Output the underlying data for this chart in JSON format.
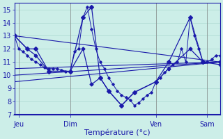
{
  "title": "Température (°c)",
  "background_color": "#cceee8",
  "grid_color": "#aad8d0",
  "line_color": "#1a1aaa",
  "ylim": [
    7,
    15.5
  ],
  "yticks": [
    7,
    8,
    9,
    10,
    11,
    12,
    13,
    14,
    15
  ],
  "xlim": [
    0,
    48
  ],
  "day_ticks": [
    1,
    13,
    33,
    45
  ],
  "day_labels": [
    "Jeu",
    "Dim",
    "Ven",
    "Sam"
  ],
  "day_vlines": [
    1,
    13,
    33,
    45
  ],
  "minor_tick_positions": [
    1,
    2,
    3,
    4,
    5,
    6,
    7,
    8,
    9,
    10,
    11,
    12,
    13,
    14,
    15,
    16,
    17,
    18,
    19,
    20,
    21,
    22,
    23,
    24,
    25,
    26,
    27,
    28,
    29,
    30,
    31,
    32,
    33,
    34,
    35,
    36,
    37,
    38,
    39,
    40,
    41,
    42,
    43,
    44,
    45,
    46,
    47
  ],
  "series_dense_x": [
    0,
    1,
    2,
    3,
    4,
    5,
    6,
    7,
    8,
    9,
    10,
    11,
    12,
    13,
    14,
    15,
    16,
    17,
    18,
    19,
    20,
    21,
    22,
    23,
    24,
    25,
    26,
    27,
    28,
    29,
    30,
    31,
    32,
    33,
    34,
    35,
    36,
    37,
    38,
    39,
    40,
    41,
    42,
    43,
    44,
    45,
    46,
    47,
    48
  ],
  "series_dense_y": [
    13.0,
    12.0,
    11.8,
    11.5,
    11.2,
    11.0,
    10.8,
    10.6,
    10.5,
    10.5,
    10.5,
    10.4,
    10.3,
    10.3,
    11.8,
    12.0,
    14.4,
    15.2,
    13.5,
    12.0,
    11.0,
    10.5,
    9.8,
    9.3,
    8.8,
    8.5,
    8.3,
    8.1,
    7.7,
    7.9,
    8.2,
    8.5,
    8.7,
    9.5,
    9.8,
    10.2,
    10.5,
    10.8,
    11.0,
    12.0,
    11.0,
    14.4,
    13.0,
    12.0,
    11.0,
    11.0,
    11.2,
    11.5,
    11.5
  ],
  "series_spiky_x": [
    0,
    3,
    5,
    8,
    13,
    16,
    18,
    20,
    22,
    25,
    28,
    33,
    36,
    41,
    44,
    48
  ],
  "series_spiky_y": [
    13.0,
    12.0,
    12.0,
    10.3,
    10.3,
    14.4,
    15.2,
    9.8,
    8.8,
    7.7,
    8.7,
    9.5,
    11.0,
    14.4,
    11.0,
    11.0
  ],
  "series_low_x": [
    0,
    3,
    5,
    8,
    13,
    16,
    18,
    20,
    22,
    25,
    28,
    33,
    36,
    41,
    44,
    48
  ],
  "series_low_y": [
    13.0,
    12.0,
    11.5,
    10.3,
    10.3,
    12.0,
    9.3,
    9.8,
    8.8,
    7.7,
    8.7,
    9.5,
    10.5,
    12.0,
    11.0,
    10.8
  ],
  "trend1_x": [
    0,
    48
  ],
  "trend1_y": [
    13.0,
    11.0
  ],
  "trend2_x": [
    0,
    48
  ],
  "trend2_y": [
    10.5,
    11.0
  ],
  "trend3_x": [
    0,
    48
  ],
  "trend3_y": [
    10.0,
    11.0
  ],
  "trend4_x": [
    0,
    48
  ],
  "trend4_y": [
    9.5,
    11.0
  ]
}
